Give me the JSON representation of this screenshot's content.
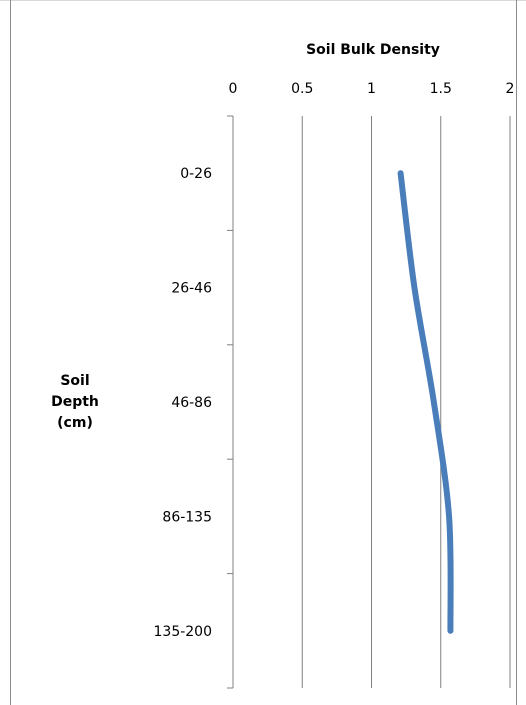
{
  "chart_data": {
    "type": "line",
    "title": "Soil Bulk Density",
    "xlabel": "",
    "ylabel": "Soil Depth (cm)",
    "ylabel_lines": [
      "Soil",
      "Depth",
      "(cm)"
    ],
    "categories": [
      "0-26",
      "26-46",
      "46-86",
      "86-135",
      "135-200"
    ],
    "xlim": [
      0,
      2
    ],
    "xticks": [
      "0",
      "0.5",
      "1",
      "1.5",
      "2"
    ],
    "xaxis_position": "top",
    "y_orientation": "reversed",
    "grid": "vertical major gridlines",
    "legend": "none",
    "series": [
      {
        "values": [
          1.21,
          1.31,
          1.45,
          1.56,
          1.57
        ],
        "color": "#4a7ebb"
      }
    ]
  }
}
